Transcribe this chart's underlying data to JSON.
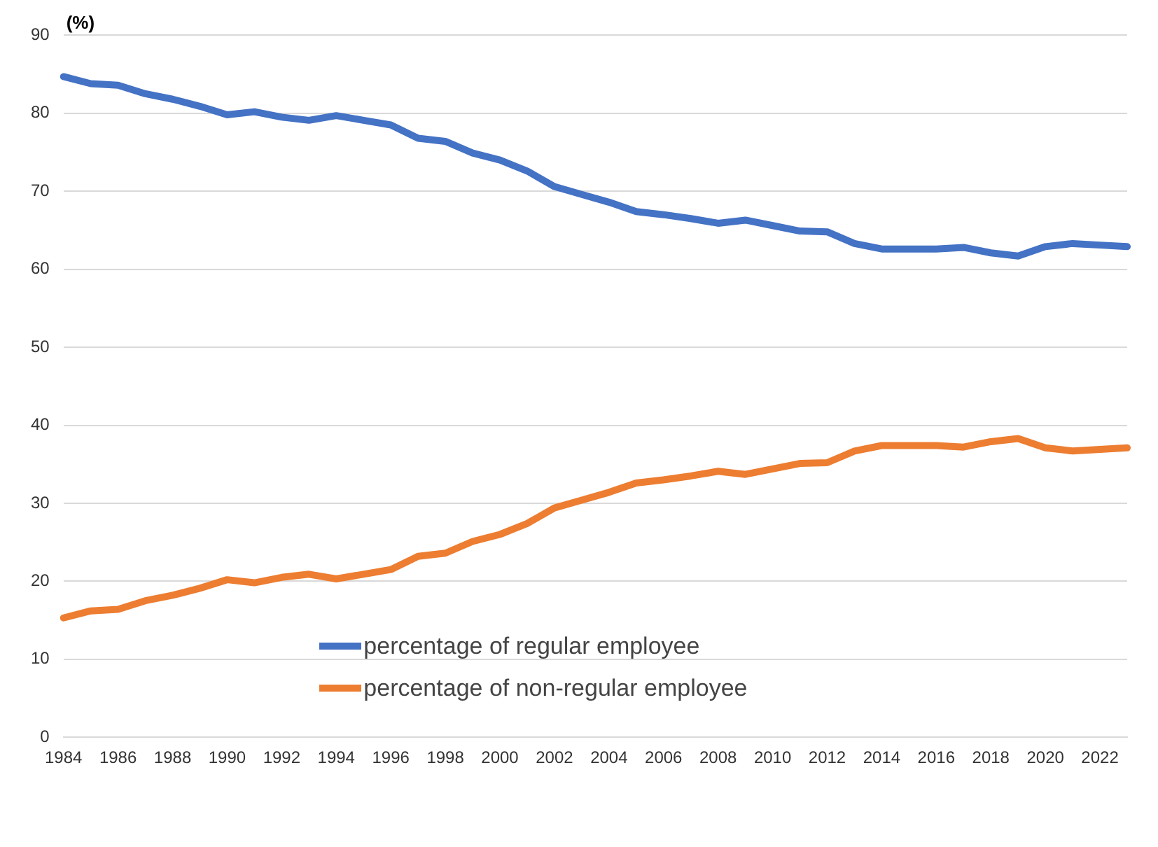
{
  "chart_data": {
    "type": "line",
    "ylabel": "(%)",
    "categories": [
      "1984",
      null,
      "1986",
      null,
      "1988",
      null,
      "1990",
      null,
      "1992",
      null,
      "1994",
      null,
      "1996",
      null,
      "1998",
      null,
      "2000",
      null,
      "2002",
      null,
      "2004",
      null,
      "2006",
      null,
      "2008",
      null,
      "2010",
      null,
      "2012",
      null,
      "2014",
      null,
      "2016",
      null,
      "2018",
      null,
      "2020",
      null,
      "2022",
      null
    ],
    "series": [
      {
        "name": "percentage of regular employee",
        "color": "#4472c4",
        "values": [
          84.7,
          83.8,
          83.6,
          82.5,
          81.8,
          80.9,
          79.8,
          80.2,
          79.5,
          79.1,
          79.7,
          79.1,
          78.5,
          76.8,
          76.4,
          74.9,
          74.0,
          72.6,
          70.6,
          69.6,
          68.6,
          67.4,
          67.0,
          66.5,
          65.9,
          66.3,
          65.6,
          64.9,
          64.8,
          63.3,
          62.6,
          62.6,
          62.6,
          62.8,
          62.1,
          61.7,
          62.9,
          63.3,
          63.1,
          62.9
        ]
      },
      {
        "name": "percentage of non-regular employee",
        "color": "#ed7d31",
        "values": [
          15.3,
          16.2,
          16.4,
          17.5,
          18.2,
          19.1,
          20.2,
          19.8,
          20.5,
          20.9,
          20.3,
          20.9,
          21.5,
          23.2,
          23.6,
          25.1,
          26.0,
          27.4,
          29.4,
          30.4,
          31.4,
          32.6,
          33.0,
          33.5,
          34.1,
          33.7,
          34.4,
          35.1,
          35.2,
          36.7,
          37.4,
          37.4,
          37.4,
          37.2,
          37.9,
          38.3,
          37.1,
          36.7,
          36.9,
          37.1
        ]
      }
    ],
    "ylim": [
      0,
      90
    ],
    "yticks": [
      0,
      10,
      20,
      30,
      40,
      50,
      60,
      70,
      80,
      90
    ],
    "grid": "y",
    "legend": "bottom",
    "marker": "none",
    "line_style": "solid"
  }
}
